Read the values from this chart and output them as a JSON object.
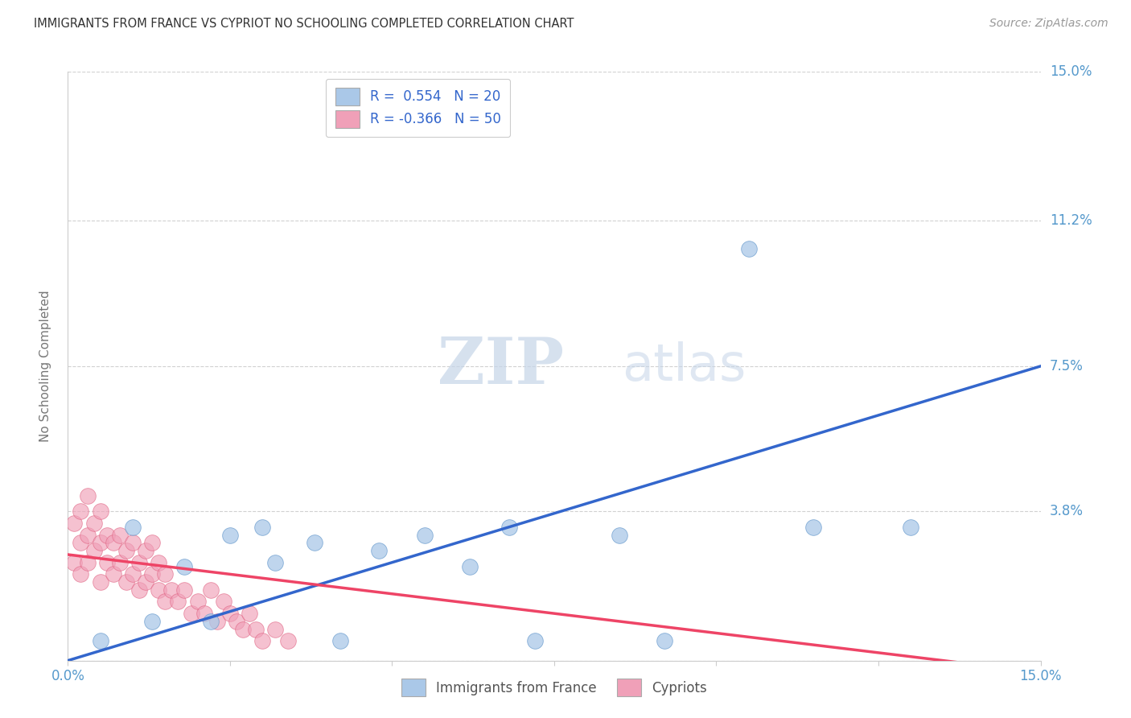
{
  "title": "IMMIGRANTS FROM FRANCE VS CYPRIOT NO SCHOOLING COMPLETED CORRELATION CHART",
  "source": "Source: ZipAtlas.com",
  "ylabel": "No Schooling Completed",
  "xlim": [
    0.0,
    0.15
  ],
  "ylim": [
    0.0,
    0.15
  ],
  "ytick_positions": [
    0.0,
    0.038,
    0.075,
    0.112,
    0.15
  ],
  "ytick_labels": [
    "",
    "3.8%",
    "7.5%",
    "11.2%",
    "15.0%"
  ],
  "xtick_positions": [
    0.0,
    0.025,
    0.05,
    0.075,
    0.1,
    0.125,
    0.15
  ],
  "xtick_labels": [
    "0.0%",
    "",
    "",
    "",
    "",
    "",
    "15.0%"
  ],
  "watermark_zip": "ZIP",
  "watermark_atlas": "atlas",
  "legend_r1": "R =  0.554",
  "legend_n1": "N = 20",
  "legend_r2": "R = -0.366",
  "legend_n2": "N = 50",
  "blue_scatter_color": "#aac8e8",
  "pink_scatter_color": "#f0a0b8",
  "blue_scatter_edge": "#6699cc",
  "pink_scatter_edge": "#e06080",
  "blue_line_color": "#3366cc",
  "pink_line_color": "#ee4466",
  "axis_label_color": "#5599cc",
  "grid_color": "#cccccc",
  "france_x": [
    0.005,
    0.01,
    0.013,
    0.018,
    0.022,
    0.025,
    0.03,
    0.032,
    0.038,
    0.042,
    0.048,
    0.055,
    0.062,
    0.068,
    0.072,
    0.085,
    0.092,
    0.105,
    0.115,
    0.13
  ],
  "france_y": [
    0.005,
    0.034,
    0.01,
    0.024,
    0.01,
    0.032,
    0.034,
    0.025,
    0.03,
    0.005,
    0.028,
    0.032,
    0.024,
    0.034,
    0.005,
    0.032,
    0.005,
    0.105,
    0.034,
    0.034
  ],
  "cypriot_x": [
    0.001,
    0.001,
    0.002,
    0.002,
    0.002,
    0.003,
    0.003,
    0.003,
    0.004,
    0.004,
    0.005,
    0.005,
    0.005,
    0.006,
    0.006,
    0.007,
    0.007,
    0.008,
    0.008,
    0.009,
    0.009,
    0.01,
    0.01,
    0.011,
    0.011,
    0.012,
    0.012,
    0.013,
    0.013,
    0.014,
    0.014,
    0.015,
    0.015,
    0.016,
    0.017,
    0.018,
    0.019,
    0.02,
    0.021,
    0.022,
    0.023,
    0.024,
    0.025,
    0.026,
    0.027,
    0.028,
    0.029,
    0.03,
    0.032,
    0.034
  ],
  "cypriot_y": [
    0.025,
    0.035,
    0.022,
    0.03,
    0.038,
    0.025,
    0.032,
    0.042,
    0.028,
    0.035,
    0.02,
    0.03,
    0.038,
    0.025,
    0.032,
    0.022,
    0.03,
    0.025,
    0.032,
    0.02,
    0.028,
    0.022,
    0.03,
    0.018,
    0.025,
    0.02,
    0.028,
    0.022,
    0.03,
    0.018,
    0.025,
    0.015,
    0.022,
    0.018,
    0.015,
    0.018,
    0.012,
    0.015,
    0.012,
    0.018,
    0.01,
    0.015,
    0.012,
    0.01,
    0.008,
    0.012,
    0.008,
    0.005,
    0.008,
    0.005
  ],
  "blue_line_x": [
    0.0,
    0.15
  ],
  "blue_line_y": [
    0.0,
    0.075
  ],
  "pink_line_x": [
    0.0,
    0.15
  ],
  "pink_line_y": [
    0.027,
    -0.003
  ]
}
